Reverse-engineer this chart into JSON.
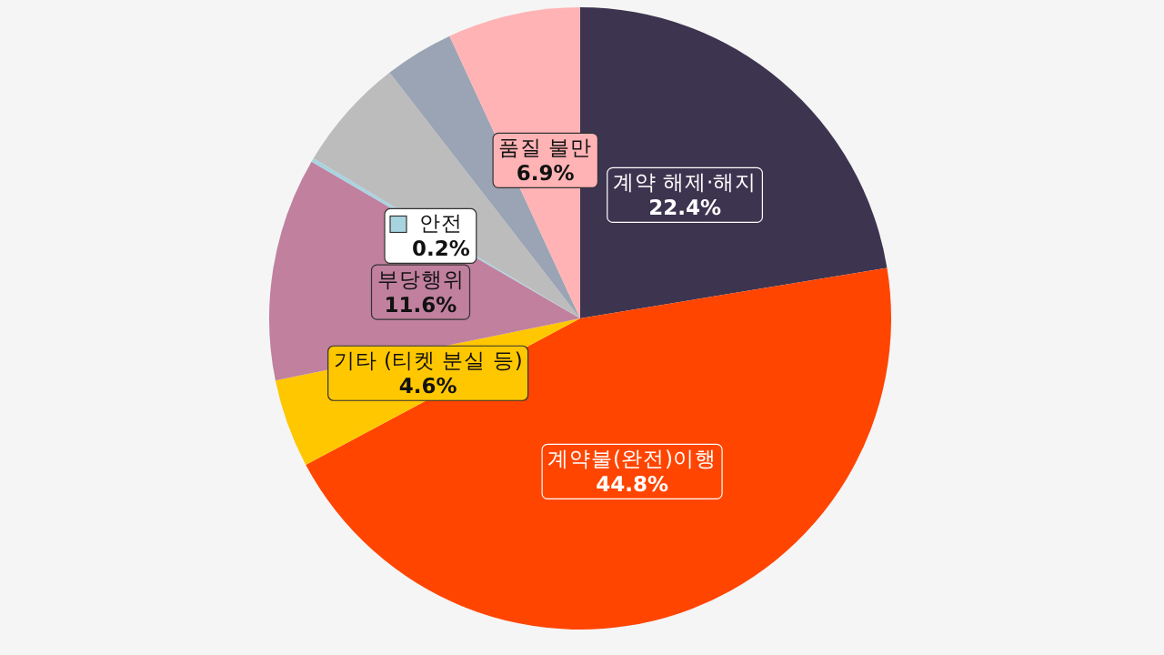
{
  "chart_data": {
    "type": "pie",
    "categories": [
      "계약 해제·해지",
      "계약불(완전)이행",
      "기타 (티켓 분실 등)",
      "부당행위",
      "안전",
      null,
      null,
      "품질 불만"
    ],
    "values": [
      22.4,
      44.8,
      4.6,
      11.6,
      0.2,
      5.9,
      3.6,
      6.9
    ],
    "colors": [
      "#3d3450",
      "#ff4500",
      "#ffc700",
      "#c0809e",
      "#a8d4e0",
      "#bcbcbc",
      "#9aa4b4",
      "#ffb3b5"
    ],
    "value_labels": [
      "22.4%",
      "44.8%",
      "4.6%",
      "11.6%",
      "0.2%",
      null,
      null,
      "6.9%"
    ]
  }
}
